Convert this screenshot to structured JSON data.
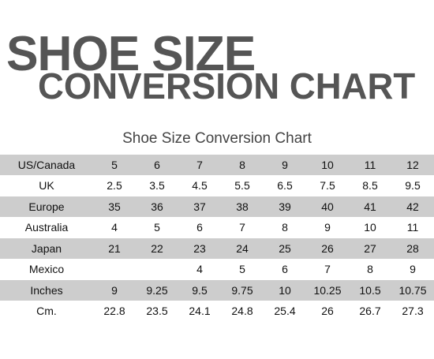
{
  "header": {
    "line1": "SHOE SIZE",
    "line2": "CONVERSION CHART"
  },
  "chart_data": {
    "type": "table",
    "title": "Shoe Size Conversion Chart",
    "rows": [
      {
        "label": "US/Canada",
        "values": [
          "5",
          "6",
          "7",
          "8",
          "9",
          "10",
          "11",
          "12"
        ]
      },
      {
        "label": "UK",
        "values": [
          "2.5",
          "3.5",
          "4.5",
          "5.5",
          "6.5",
          "7.5",
          "8.5",
          "9.5"
        ]
      },
      {
        "label": "Europe",
        "values": [
          "35",
          "36",
          "37",
          "38",
          "39",
          "40",
          "41",
          "42"
        ]
      },
      {
        "label": "Australia",
        "values": [
          "4",
          "5",
          "6",
          "7",
          "8",
          "9",
          "10",
          "11"
        ]
      },
      {
        "label": "Japan",
        "values": [
          "21",
          "22",
          "23",
          "24",
          "25",
          "26",
          "27",
          "28"
        ]
      },
      {
        "label": "Mexico",
        "values": [
          "",
          "",
          "4",
          "5",
          "6",
          "7",
          "8",
          "9"
        ]
      },
      {
        "label": "Inches",
        "values": [
          "9",
          "9.25",
          "9.5",
          "9.75",
          "10",
          "10.25",
          "10.5",
          "10.75"
        ]
      },
      {
        "label": "Cm.",
        "values": [
          "22.8",
          "23.5",
          "24.1",
          "24.8",
          "25.4",
          "26",
          "26.7",
          "27.3"
        ]
      }
    ]
  },
  "colors": {
    "heading_gray": "#555555",
    "shaded_row": "#cdcdcd",
    "plain_row": "#ffffff"
  }
}
